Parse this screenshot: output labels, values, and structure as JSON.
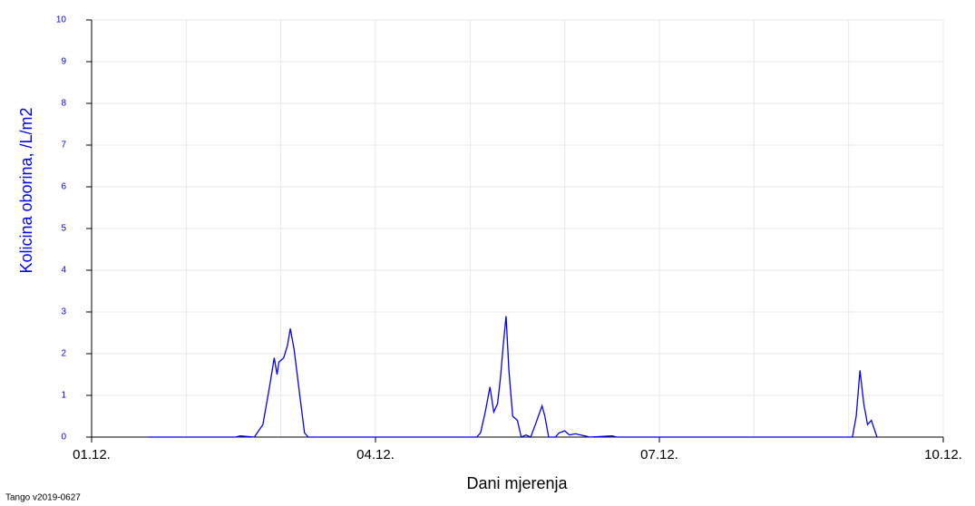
{
  "chart_data": {
    "type": "line",
    "ylabel": "Kolicina oborina, /L/m2",
    "xlabel": "Dani mjerenja",
    "footnote": "Tango v2019-0627",
    "xlim": [
      1,
      10
    ],
    "xticks": [
      {
        "value": 1,
        "label": "01.12."
      },
      {
        "value": 4,
        "label": "04.12."
      },
      {
        "value": 7,
        "label": "07.12."
      },
      {
        "value": 10,
        "label": "10.12."
      }
    ],
    "xgrid": [
      1,
      2,
      3,
      4,
      5,
      6,
      7,
      8,
      9,
      10
    ],
    "ylim": [
      0,
      10
    ],
    "yticks": [
      0,
      1,
      2,
      3,
      4,
      5,
      6,
      7,
      8,
      9,
      10
    ],
    "grid": true,
    "series": [
      {
        "color": "#0000ff",
        "x": [
          1.59,
          2.52,
          2.57,
          2.72,
          2.81,
          2.88,
          2.93,
          2.96,
          2.98,
          3.03,
          3.07,
          3.1,
          3.14,
          3.2,
          3.25,
          3.29,
          5.07,
          5.11,
          5.16,
          5.21,
          5.25,
          5.29,
          5.32,
          5.35,
          5.38,
          5.41,
          5.45,
          5.5,
          5.54,
          5.59,
          5.64,
          5.69,
          5.76,
          5.79,
          5.83,
          5.9,
          5.94,
          6.0,
          6.05,
          6.11,
          6.17,
          6.23,
          6.26,
          6.5,
          6.55,
          9.04,
          9.08,
          9.12,
          9.16,
          9.2,
          9.24,
          9.27,
          9.3
        ],
        "values": [
          0,
          0,
          0.03,
          0,
          0.3,
          1.2,
          1.9,
          1.5,
          1.8,
          1.9,
          2.2,
          2.6,
          2.1,
          1.0,
          0.1,
          0,
          0,
          0.1,
          0.6,
          1.2,
          0.6,
          0.8,
          1.4,
          2.2,
          2.9,
          1.6,
          0.5,
          0.4,
          0,
          0.05,
          0,
          0.3,
          0.75,
          0.5,
          0,
          0,
          0.1,
          0.15,
          0.05,
          0.08,
          0.05,
          0.02,
          0,
          0.03,
          0,
          0,
          0.5,
          1.6,
          0.8,
          0.3,
          0.4,
          0.2,
          0
        ]
      }
    ]
  }
}
